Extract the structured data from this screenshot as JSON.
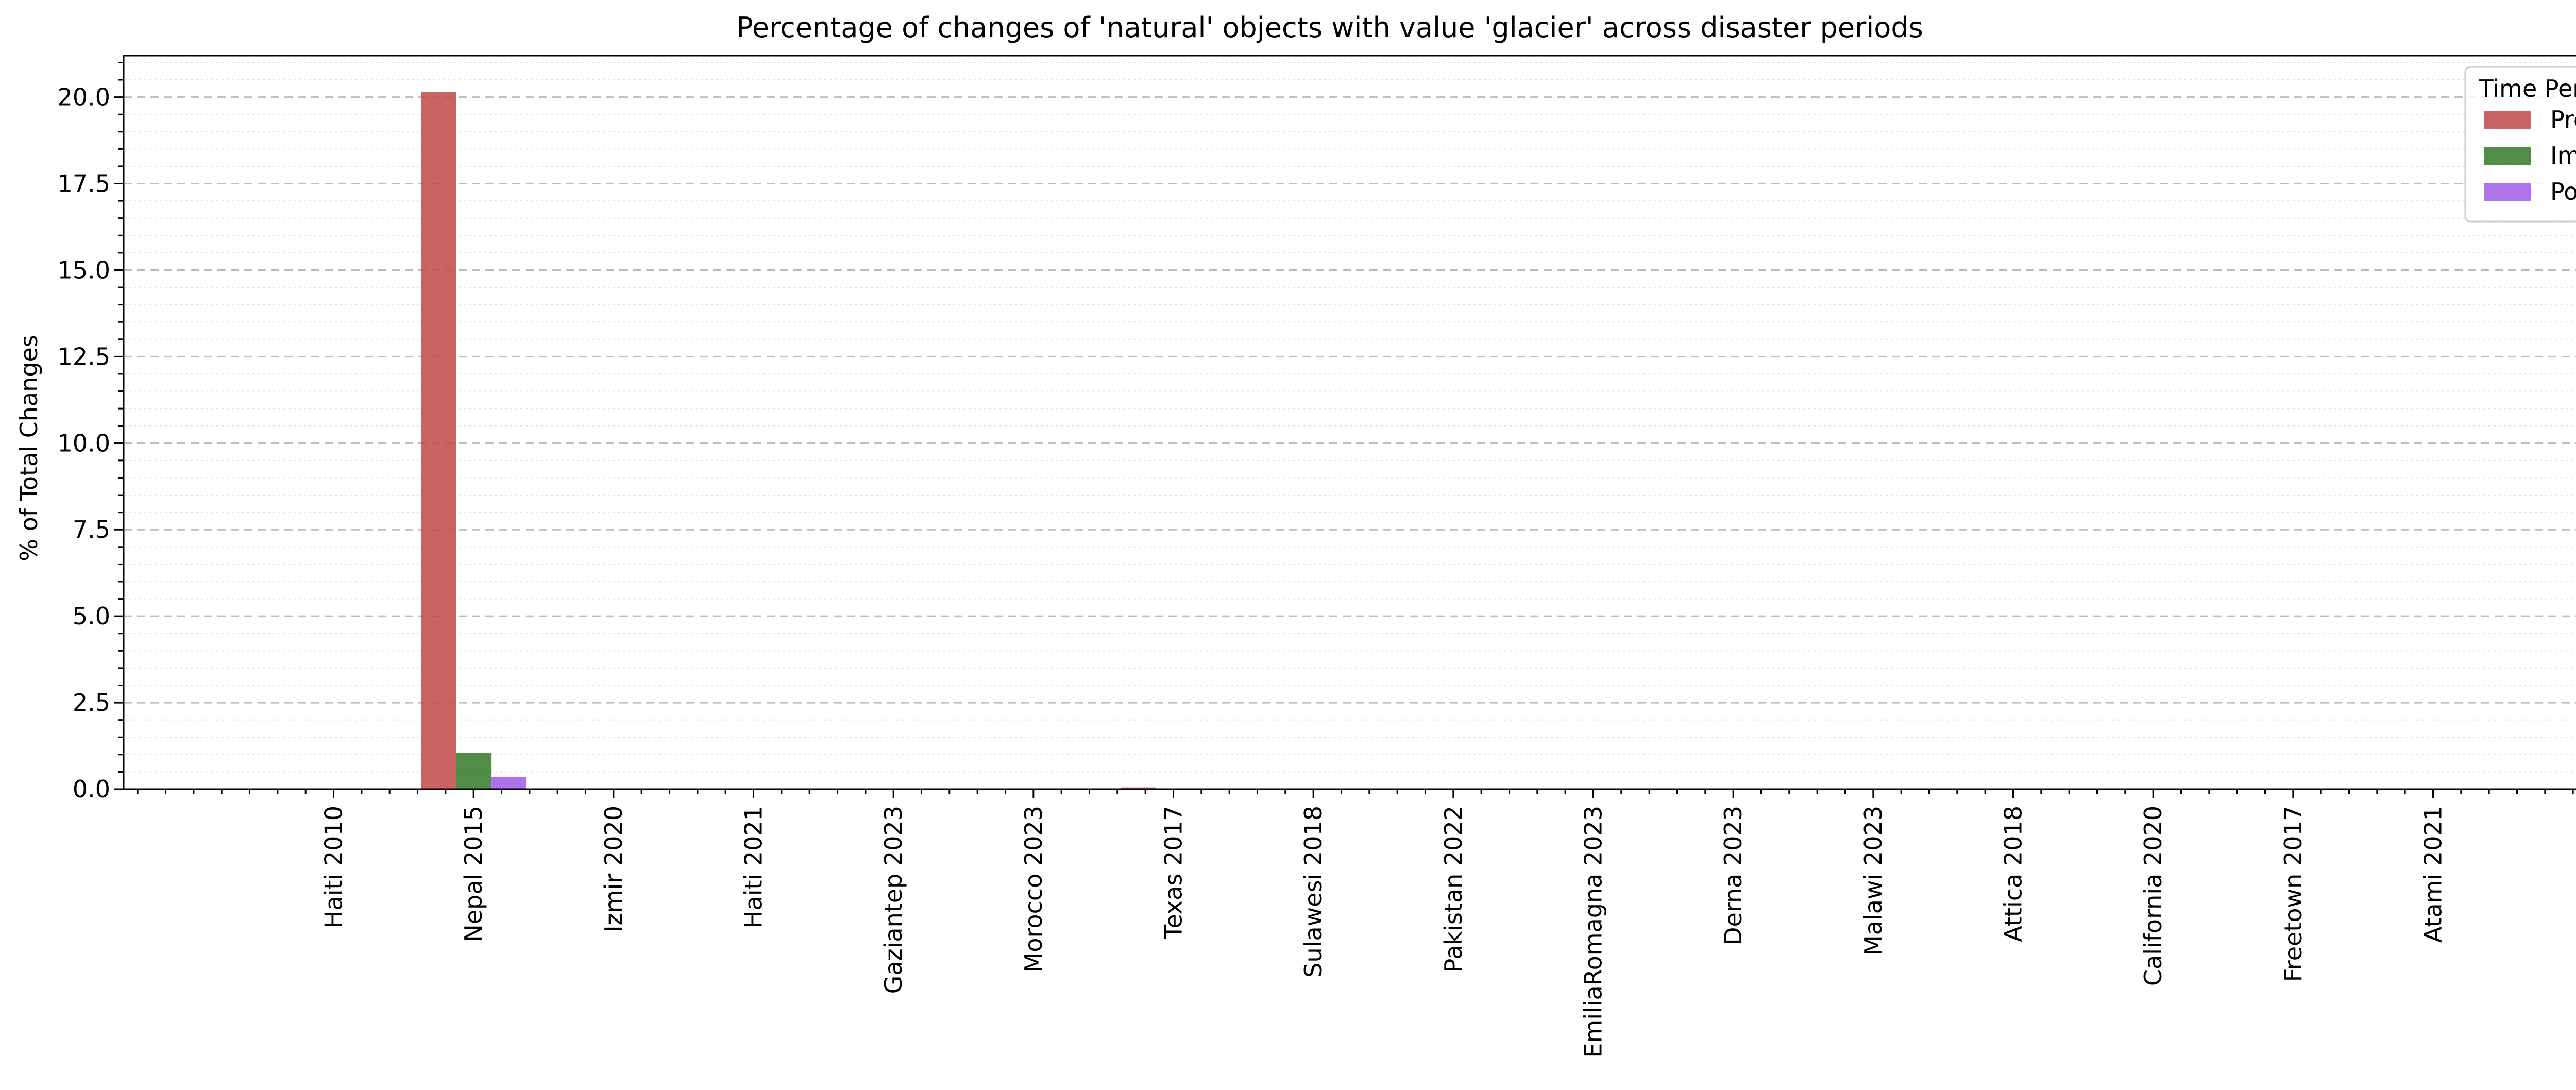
{
  "chart_data": {
    "type": "bar",
    "title": "Percentage of changes of 'natural' objects with value 'glacier' across disaster periods",
    "xlabel": "",
    "ylabel": "% of Total Changes",
    "ylim": [
      0,
      21.2
    ],
    "yticks": [
      "0.0",
      "2.5",
      "5.0",
      "7.5",
      "10.0",
      "12.5",
      "15.0",
      "17.5",
      "20.0"
    ],
    "grid": "y-major-dashed-and-minor-dotted",
    "legend": {
      "title": "Time Period",
      "placement": "top-right"
    },
    "categories": [
      "Haiti 2010",
      "Nepal 2015",
      "Izmir 2020",
      "Haiti 2021",
      "Gaziantep 2023",
      "Morocco 2023",
      "Texas 2017",
      "Sulawesi 2018",
      "Pakistan 2022",
      "EmiliaRomagna 2023",
      "Derna 2023",
      "Malawi 2023",
      "Attica 2018",
      "California 2020",
      "Freetown 2017",
      "Atami 2021"
    ],
    "series": [
      {
        "name": "Pre",
        "color": "#c0504d",
        "values": [
          0,
          20.15,
          0,
          0,
          0,
          0,
          0.05,
          0,
          0,
          0,
          0,
          0,
          0,
          0,
          0,
          0
        ]
      },
      {
        "name": "Imm",
        "color": "#3a7d2e",
        "values": [
          0,
          1.05,
          0,
          0,
          0,
          0,
          0,
          0,
          0,
          0,
          0,
          0,
          0,
          0,
          0,
          0
        ]
      },
      {
        "name": "Post",
        "color": "#a35ee8",
        "values": [
          0,
          0.35,
          0,
          0,
          0,
          0,
          0,
          0,
          0,
          0,
          0,
          0,
          0,
          0,
          0,
          0
        ]
      }
    ]
  }
}
